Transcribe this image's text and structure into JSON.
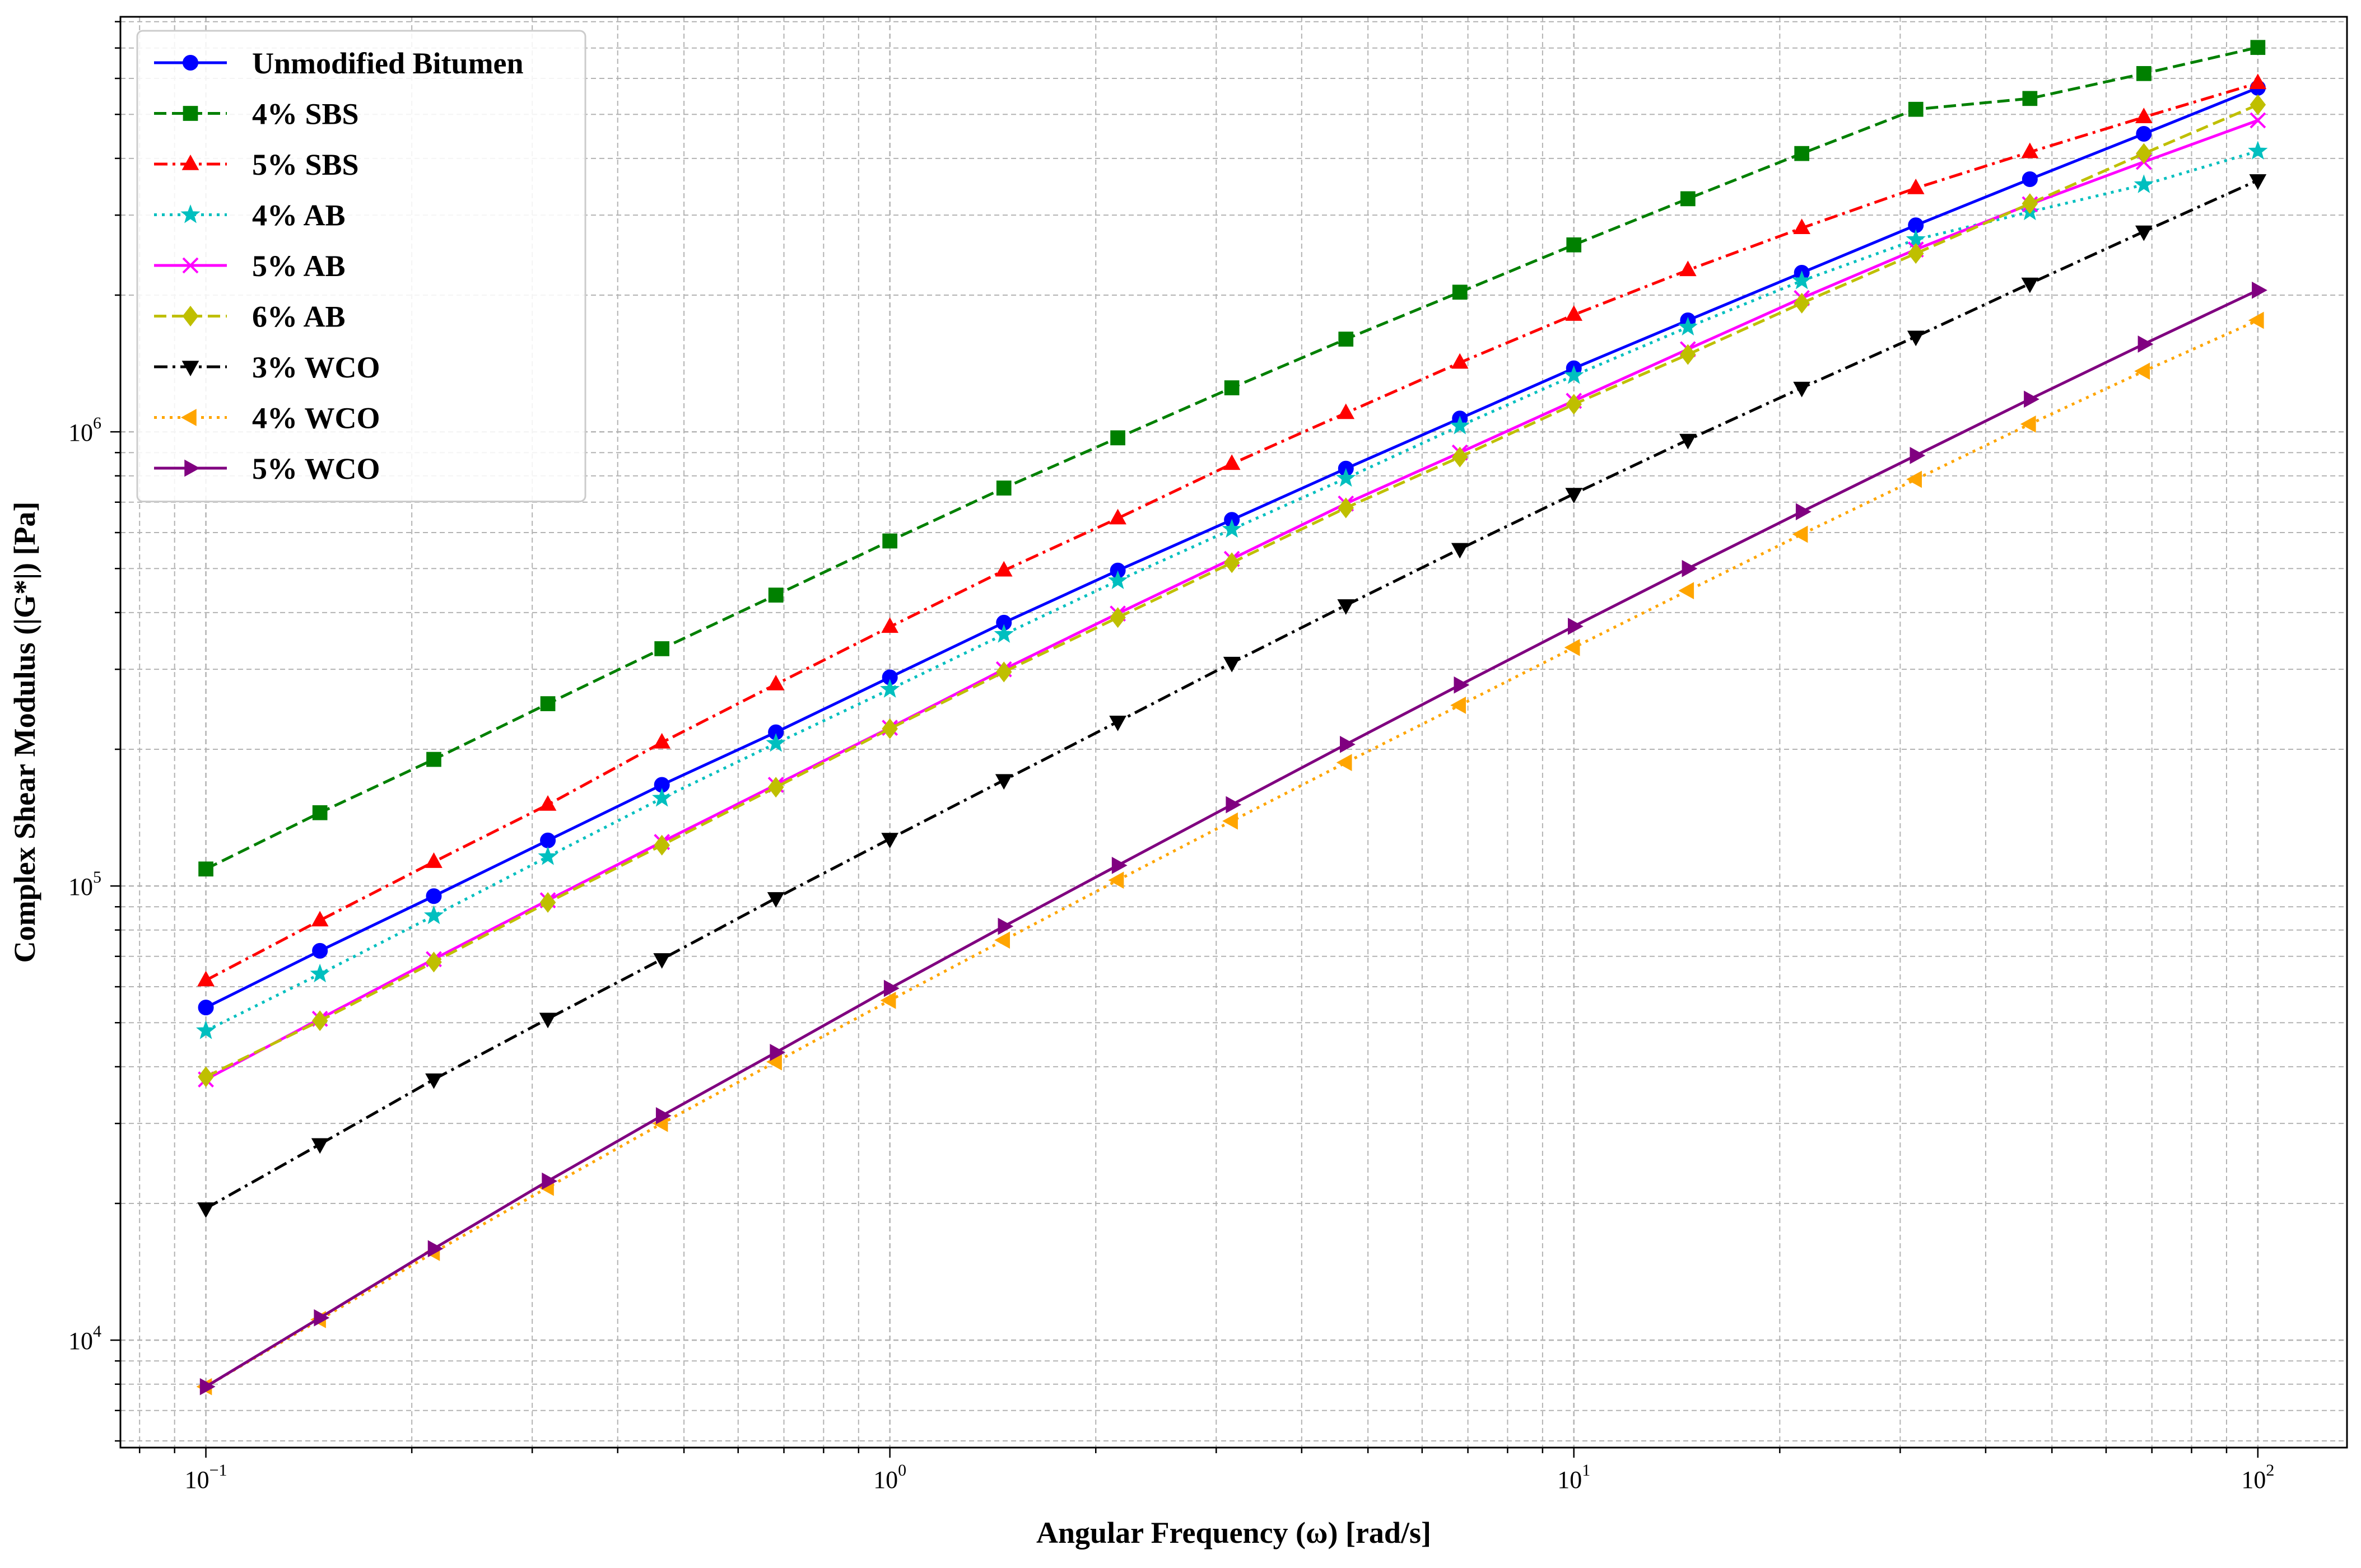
{
  "chart_data": {
    "type": "line",
    "xlabel": "Angular Frequency (ω) [rad/s]",
    "ylabel": "Complex Shear Modulus (|G*|) [Pa]",
    "xscale": "log",
    "yscale": "log",
    "xlim": [
      0.075,
      135
    ],
    "ylim": [
      5800,
      8200000
    ],
    "grid": true,
    "legend_position": "top-left",
    "x_ticks": [
      {
        "value": 0.1,
        "base": "10",
        "exp": "−1"
      },
      {
        "value": 1,
        "base": "10",
        "exp": "0"
      },
      {
        "value": 10,
        "base": "10",
        "exp": "1"
      },
      {
        "value": 100,
        "base": "10",
        "exp": "2"
      }
    ],
    "y_ticks": [
      {
        "value": 10000,
        "base": "10",
        "exp": "4"
      },
      {
        "value": 100000,
        "base": "10",
        "exp": "5"
      },
      {
        "value": 1000000,
        "base": "10",
        "exp": "6"
      }
    ],
    "x": [
      0.1,
      0.1468,
      0.2154,
      0.3162,
      0.4642,
      0.6813,
      1.0,
      1.468,
      2.154,
      3.162,
      4.642,
      6.813,
      10.0,
      14.68,
      21.54,
      31.62,
      46.42,
      68.13,
      100.0
    ],
    "series": [
      {
        "name": "Unmodified Bitumen",
        "color": "#0000ff",
        "dash": "solid",
        "marker": "circle",
        "values": [
          54000,
          72000,
          95000,
          126000,
          167000,
          218000,
          288000,
          380000,
          495000,
          640000,
          830000,
          1070000,
          1380000,
          1760000,
          2240000,
          2850000,
          3600000,
          4530000,
          5720000
        ]
      },
      {
        "name": "4% SBS",
        "color": "#008000",
        "dash": "dashed",
        "marker": "square",
        "values": [
          109000,
          145000,
          190000,
          252000,
          333000,
          437000,
          575000,
          752000,
          970000,
          1250000,
          1600000,
          2030000,
          2580000,
          3260000,
          4100000,
          5130000,
          5420000,
          6150000,
          7020000
        ]
      },
      {
        "name": "5% SBS",
        "color": "#ff0000",
        "dash": "dashdot",
        "marker": "triangle-up",
        "values": [
          62000,
          84000,
          113000,
          151000,
          207000,
          278000,
          372000,
          495000,
          645000,
          850000,
          1100000,
          1420000,
          1810000,
          2270000,
          2810000,
          3440000,
          4130000,
          4930000,
          5860000
        ]
      },
      {
        "name": "4% AB",
        "color": "#00bfbf",
        "dash": "dotted",
        "marker": "star",
        "values": [
          48000,
          64000,
          86000,
          116000,
          156000,
          206000,
          271000,
          358000,
          470000,
          610000,
          790000,
          1030000,
          1330000,
          1700000,
          2150000,
          2650000,
          3050000,
          3500000,
          4150000
        ]
      },
      {
        "name": "5% AB",
        "color": "#ff00ff",
        "dash": "solid",
        "marker": "x",
        "values": [
          37500,
          51000,
          69000,
          93000,
          125000,
          167000,
          223000,
          300000,
          398000,
          525000,
          695000,
          900000,
          1170000,
          1520000,
          1970000,
          2520000,
          3170000,
          3930000,
          4850000
        ]
      },
      {
        "name": "6% AB",
        "color": "#bfbf00",
        "dash": "dashed",
        "marker": "diamond",
        "values": [
          38000,
          50500,
          68000,
          92000,
          123000,
          165000,
          222000,
          296000,
          390000,
          515000,
          680000,
          880000,
          1150000,
          1480000,
          1920000,
          2470000,
          3180000,
          4100000,
          5250000
        ]
      },
      {
        "name": "3% WCO",
        "color": "#000000",
        "dash": "dashdot",
        "marker": "triangle-down",
        "values": [
          19500,
          27000,
          37500,
          51000,
          69000,
          94000,
          127000,
          171000,
          230000,
          310000,
          415000,
          552000,
          730000,
          960000,
          1250000,
          1620000,
          2120000,
          2760000,
          3580000
        ]
      },
      {
        "name": "4% WCO",
        "color": "#ffa500",
        "dash": "dotted",
        "marker": "triangle-left",
        "values": [
          7900,
          11100,
          15600,
          21700,
          30000,
          41000,
          56000,
          76000,
          103000,
          139000,
          187000,
          250000,
          335000,
          447000,
          595000,
          786000,
          1040000,
          1360000,
          1760000
        ]
      },
      {
        "name": "5% WCO",
        "color": "#800080",
        "dash": "solid",
        "marker": "triangle-right",
        "values": [
          7900,
          11200,
          15900,
          22400,
          31200,
          43000,
          59500,
          81500,
          111000,
          151000,
          205000,
          277000,
          373000,
          500000,
          667000,
          887000,
          1180000,
          1560000,
          2050000
        ]
      }
    ]
  }
}
